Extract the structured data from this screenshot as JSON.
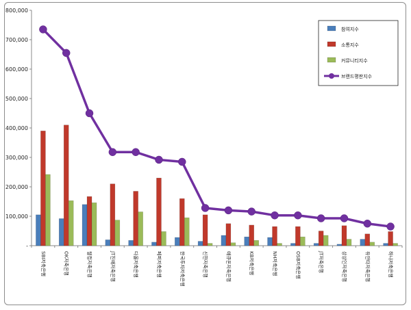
{
  "chart_data": {
    "type": "bar",
    "title": "",
    "xlabel": "",
    "ylabel": "",
    "ylim": [
      0,
      800000
    ],
    "yticks": [
      {
        "value": 0,
        "label": "-"
      },
      {
        "value": 100000,
        "label": "100,000"
      },
      {
        "value": 200000,
        "label": "200,000"
      },
      {
        "value": 300000,
        "label": "300,000"
      },
      {
        "value": 400000,
        "label": "400,000"
      },
      {
        "value": 500000,
        "label": "500,000"
      },
      {
        "value": 600000,
        "label": "600,000"
      },
      {
        "value": 700000,
        "label": "700,000"
      },
      {
        "value": 800000,
        "label": "800,000"
      }
    ],
    "grid": false,
    "legend_position": "top-right",
    "categories": [
      "SBI저축은행",
      "OK저축은행",
      "웰컴저축은행",
      "JT친애저축은행",
      "다올저축은행",
      "페퍼저축은행",
      "한국투자저축은행",
      "신한저축은행",
      "애큐온저축은행",
      "KB저축은행",
      "NH저축은행",
      "OSB저축은행",
      "JT저축은행",
      "상상인저축은행",
      "유안타저축은행",
      "하나저축은행"
    ],
    "series": [
      {
        "name": "참여지수",
        "kind": "bar",
        "color": "#4a7ebb",
        "values": [
          105000,
          92000,
          140000,
          20000,
          18000,
          12000,
          28000,
          15000,
          35000,
          30000,
          28000,
          8000,
          8000,
          5000,
          22000,
          8000
        ]
      },
      {
        "name": "소통지수",
        "kind": "bar",
        "color": "#c0392b",
        "values": [
          390000,
          410000,
          167000,
          210000,
          185000,
          230000,
          160000,
          105000,
          75000,
          70000,
          65000,
          65000,
          50000,
          68000,
          40000,
          48000
        ]
      },
      {
        "name": "커뮤니티지수",
        "kind": "bar",
        "color": "#9bbb59",
        "values": [
          242000,
          153000,
          146000,
          87000,
          115000,
          48000,
          95000,
          8000,
          10000,
          18000,
          8000,
          30000,
          35000,
          22000,
          12000,
          8000
        ]
      },
      {
        "name": "브랜드평판지수",
        "kind": "line",
        "color": "#7030a0",
        "values": [
          735000,
          655000,
          450000,
          318000,
          318000,
          292000,
          285000,
          128000,
          120000,
          116000,
          103000,
          103000,
          93000,
          93000,
          75000,
          65000
        ]
      }
    ]
  }
}
